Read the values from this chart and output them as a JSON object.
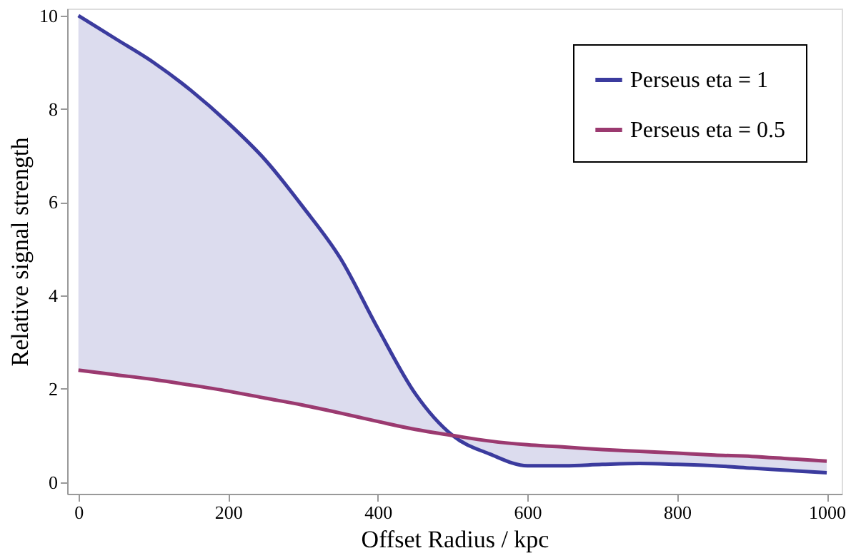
{
  "chart_data": {
    "type": "line",
    "xlabel": "Offset Radius / kpc",
    "ylabel": "Relative signal strength",
    "x": [
      0,
      50,
      100,
      150,
      200,
      250,
      300,
      350,
      400,
      450,
      500,
      550,
      600,
      650,
      700,
      750,
      800,
      850,
      900,
      950,
      1000
    ],
    "series": [
      {
        "name": "Perseus eta = 1",
        "color": "#3b3b9e",
        "values": [
          10,
          9.5,
          9.0,
          8.4,
          7.7,
          6.9,
          5.9,
          4.8,
          3.3,
          1.9,
          1.0,
          0.6,
          0.35,
          0.35,
          0.38,
          0.4,
          0.38,
          0.35,
          0.3,
          0.25,
          0.2
        ],
        "lower": [
          2.4,
          2.3,
          2.2,
          2.08,
          1.95,
          1.8,
          1.65,
          1.48,
          1.3,
          1.13,
          1.0,
          0.88,
          0.8,
          0.75,
          0.7,
          0.66,
          0.62,
          0.58,
          0.55,
          0.5,
          0.45
        ],
        "upper": [
          10,
          9.5,
          9.0,
          8.4,
          7.7,
          6.9,
          5.9,
          4.8,
          3.3,
          1.9,
          1.0,
          0.6,
          0.35,
          0.35,
          0.38,
          0.4,
          0.38,
          0.35,
          0.3,
          0.25,
          0.2
        ]
      },
      {
        "name": "Perseus eta = 0.5",
        "color": "#9b3a70",
        "values": [
          2.4,
          2.3,
          2.2,
          2.08,
          1.95,
          1.8,
          1.65,
          1.48,
          1.3,
          1.13,
          1.0,
          0.88,
          0.8,
          0.75,
          0.7,
          0.66,
          0.62,
          0.58,
          0.55,
          0.5,
          0.45
        ]
      }
    ],
    "xlim": [
      -15,
      1020
    ],
    "ylim": [
      -0.25,
      10.15
    ],
    "xticks": [
      0,
      200,
      400,
      600,
      800,
      1000
    ],
    "yticks": [
      0,
      2,
      4,
      6,
      8,
      10
    ],
    "grid": false,
    "legend": "top right",
    "line_style": "solid",
    "marker": "none"
  }
}
